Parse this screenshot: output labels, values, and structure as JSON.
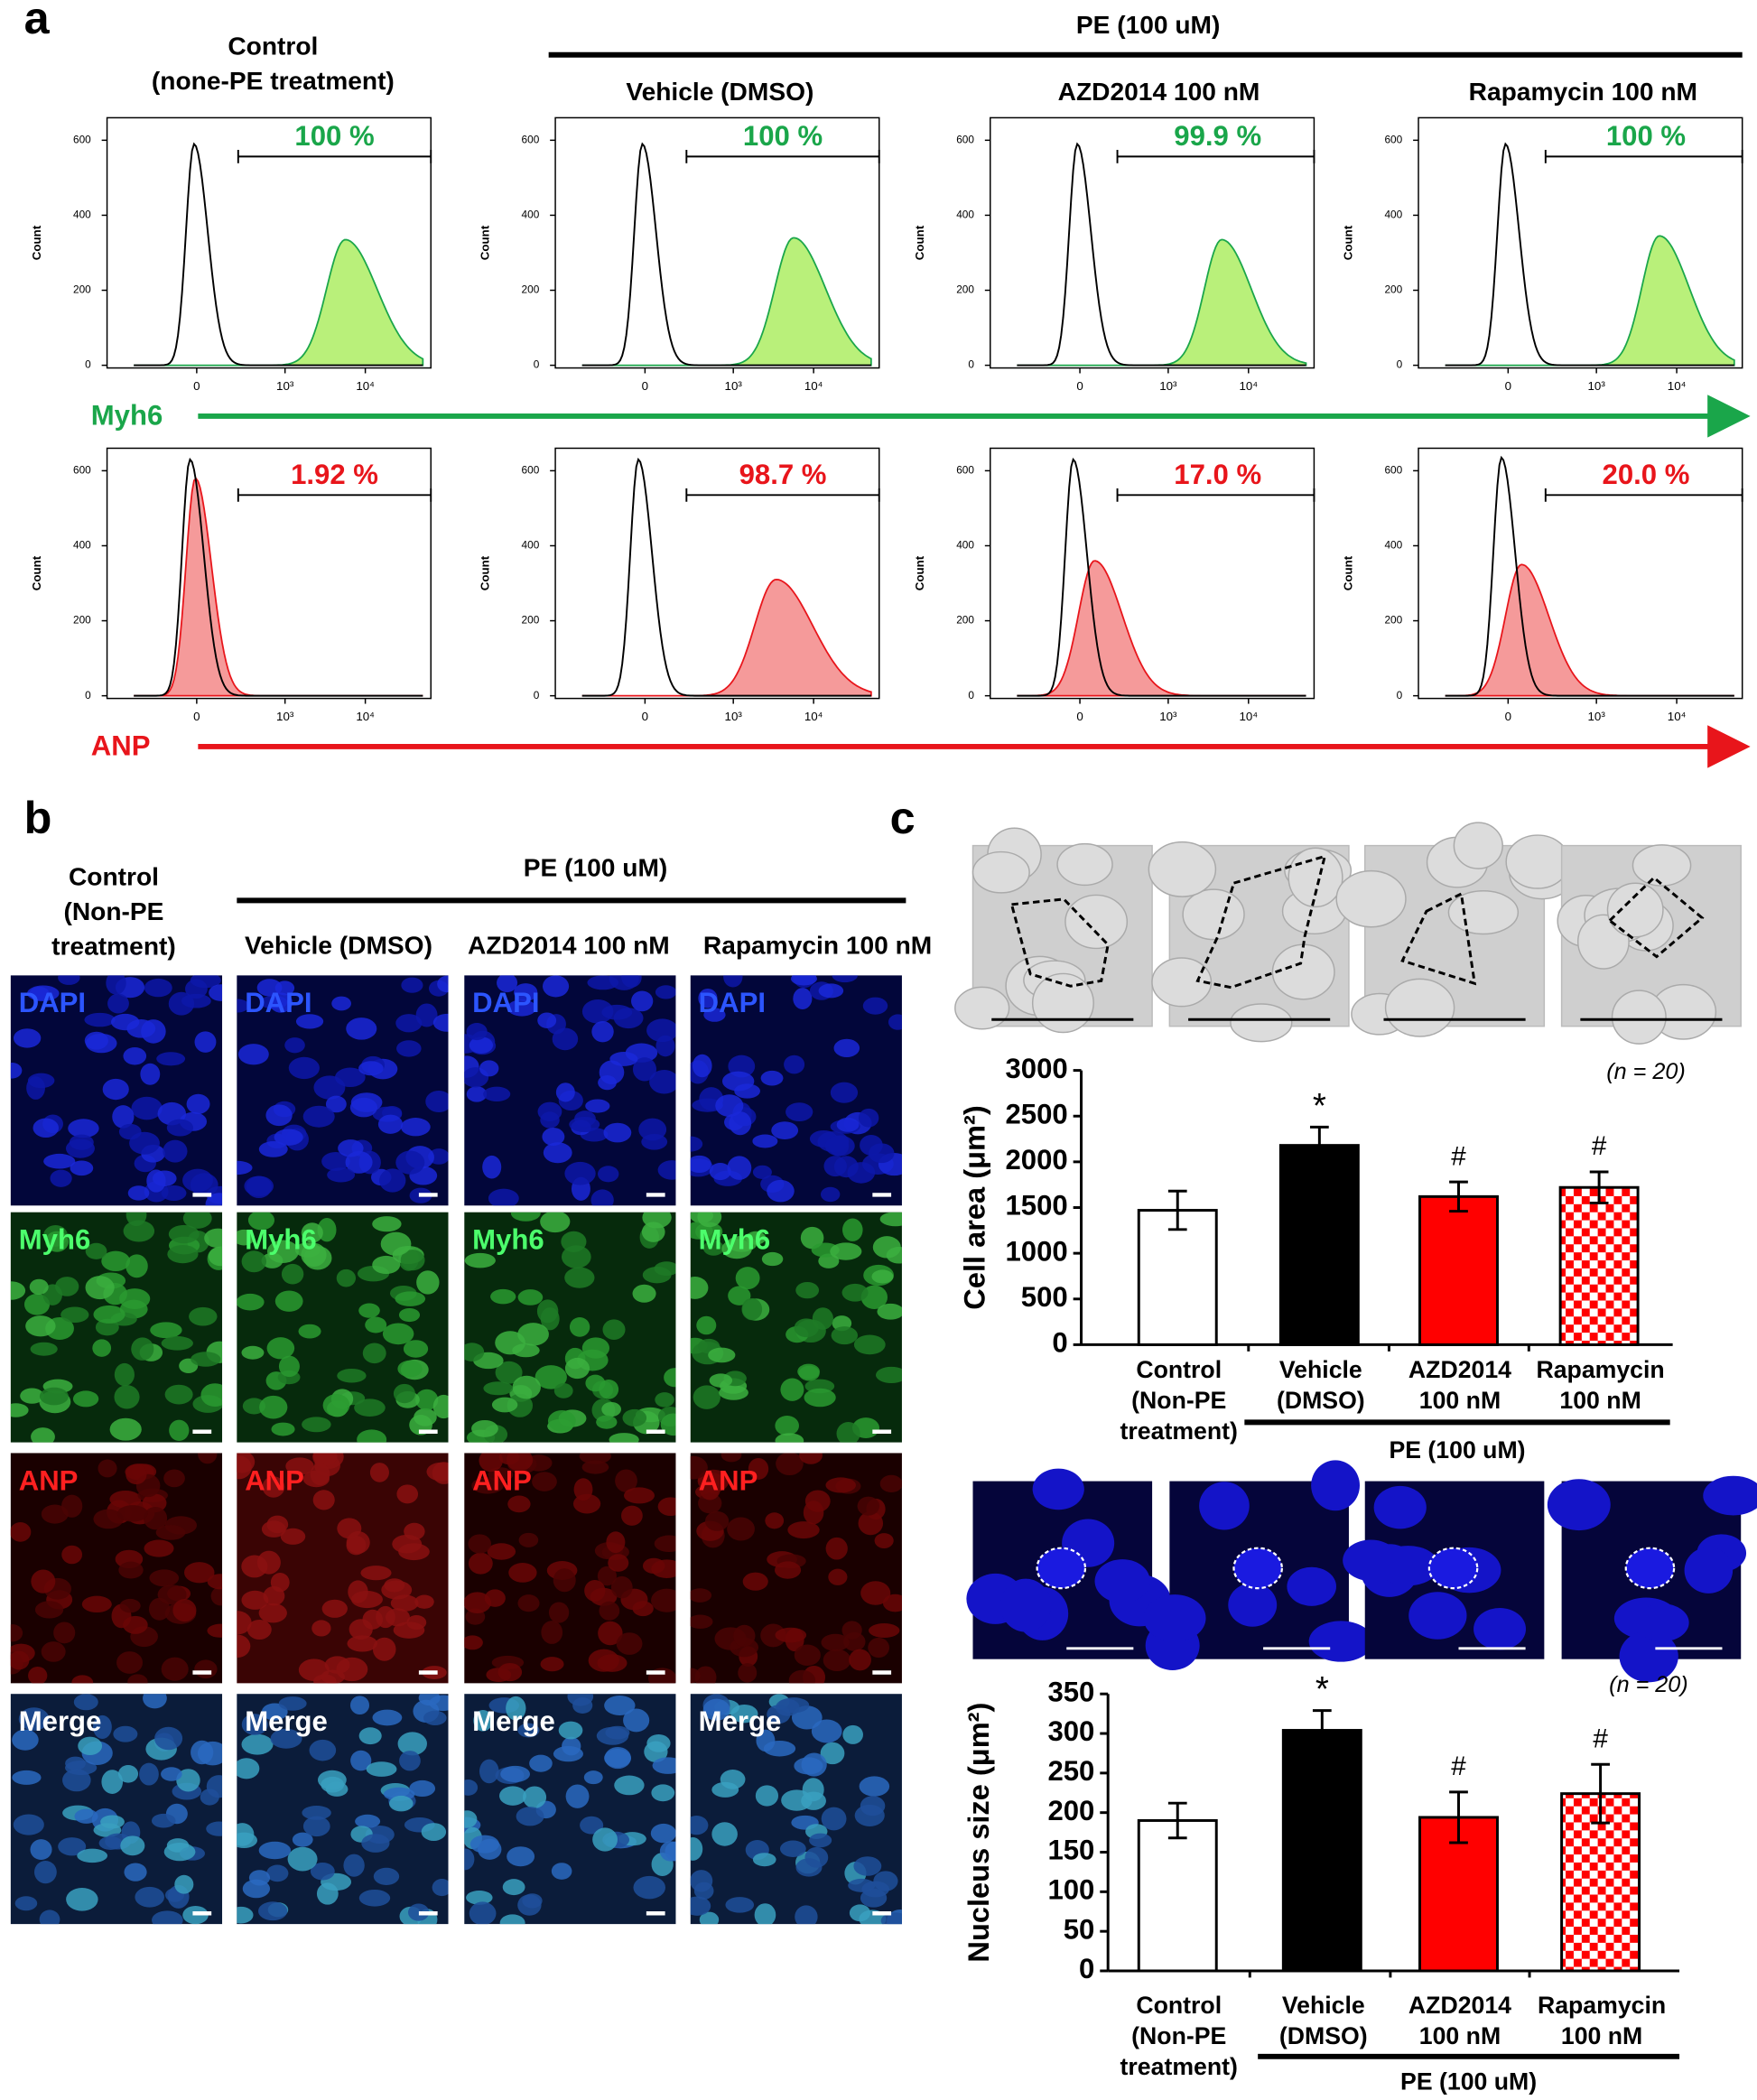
{
  "figure": {
    "panel_a": {
      "label": "a",
      "control_header": "Control\n(none-PE treatment)",
      "group_label": "PE (100 uM)",
      "treatment_headers": [
        "Vehicle (DMSO)",
        "AZD2014  100 nM",
        "Rapamycin 100 nM"
      ],
      "y_label": "Count",
      "ylim": [
        0,
        660
      ],
      "yticks": [
        0,
        200,
        400,
        600
      ],
      "xticks": [
        "0",
        "10³",
        "10⁴"
      ],
      "rows": [
        {
          "marker": "Myh6",
          "color": "#1aa64a",
          "fill": "#b9f07a",
          "gates": [
            "100 %",
            "100 %",
            "99.9 %",
            "100 %"
          ]
        },
        {
          "marker": "ANP",
          "color": "#e8151b",
          "fill": "#f59a9a",
          "gates": [
            "1.92 %",
            "98.7 %",
            "17.0 %",
            "20.0 %"
          ]
        }
      ]
    },
    "panel_b": {
      "label": "b",
      "control_header": "Control\n(Non-PE\ntreatment)",
      "group_label": "PE (100 uM)",
      "treatment_headers": [
        "Vehicle (DMSO)",
        "AZD2014 100 nM",
        "Rapamycin 100 nM"
      ],
      "channels": [
        "DAPI",
        "Myh6",
        "ANP",
        "Merge"
      ]
    },
    "panel_c": {
      "label": "c"
    }
  },
  "chart_data": [
    {
      "type": "bar",
      "y_label": "Cell area (μm²)",
      "categories": [
        "Control\n(Non-PE\ntreatment)",
        "Vehicle\n(DMSO)",
        "AZD2014\n100 nM",
        "Rapamycin\n100 nM"
      ],
      "values": [
        1470,
        2180,
        1620,
        1720
      ],
      "errors": [
        210,
        200,
        160,
        170
      ],
      "colors": [
        "#ffffff",
        "#000000",
        "#ff0000",
        "#ff0000"
      ],
      "patterns": [
        null,
        null,
        null,
        "checker"
      ],
      "significance": [
        null,
        "*",
        "#",
        "#"
      ],
      "n_label": "(n = 20)",
      "group_label": "PE (100 uM)",
      "ylim": [
        0,
        3000
      ],
      "yticks": [
        0,
        500,
        1000,
        1500,
        2000,
        2500,
        3000
      ]
    },
    {
      "type": "bar",
      "y_label": "Nucleus size (μm²)",
      "categories": [
        "Control\n(Non-PE\ntreatment)",
        "Vehicle\n(DMSO)",
        "AZD2014\n100 nM",
        "Rapamycin\n100 nM"
      ],
      "values": [
        190,
        304,
        194,
        224
      ],
      "errors": [
        22,
        25,
        32,
        37
      ],
      "colors": [
        "#ffffff",
        "#000000",
        "#ff0000",
        "#ff0000"
      ],
      "patterns": [
        null,
        null,
        null,
        "checker"
      ],
      "significance": [
        null,
        "*",
        "#",
        "#"
      ],
      "n_label": "(n = 20)",
      "group_label": "PE (100 uM)",
      "ylim": [
        0,
        350
      ],
      "yticks": [
        0,
        50,
        100,
        150,
        200,
        250,
        300,
        350
      ]
    }
  ]
}
